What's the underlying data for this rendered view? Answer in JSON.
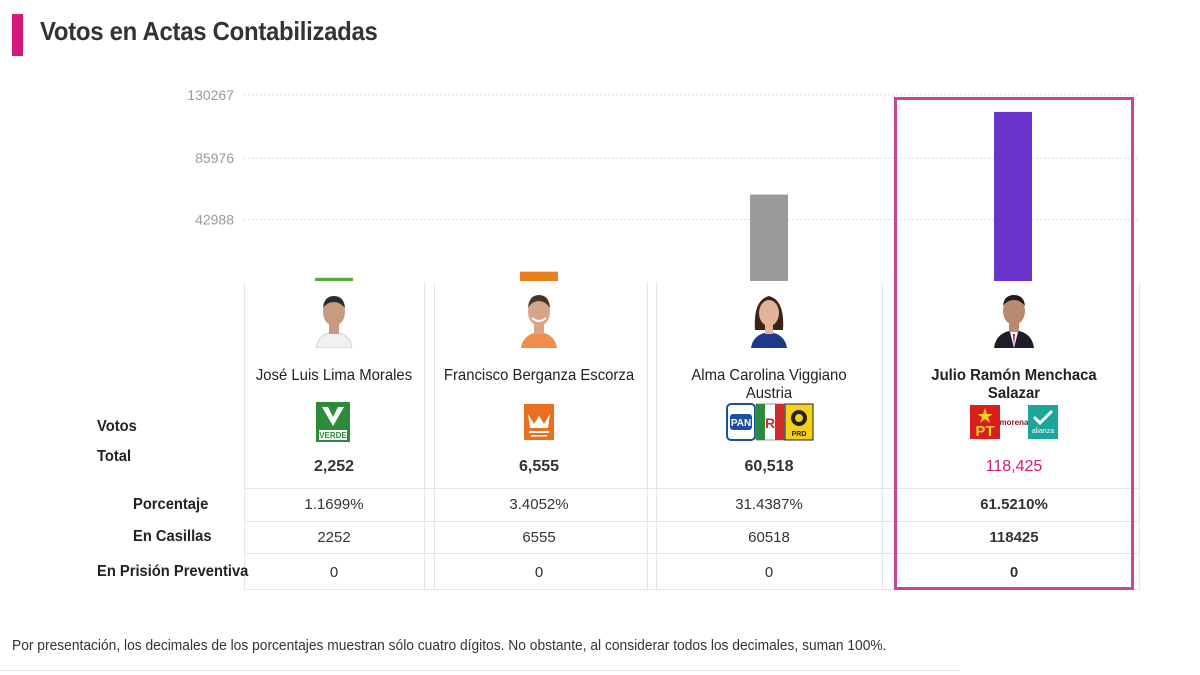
{
  "header": {
    "title": "Votos en Actas Contabilizadas"
  },
  "chart_data": {
    "type": "bar",
    "title": "Votos en Actas Contabilizadas",
    "categories": [
      "José Luis Lima Morales",
      "Francisco Berganza Escorza",
      "Alma Carolina Viggiano Austria",
      "Julio Ramón Menchaca Salazar"
    ],
    "values": [
      2252,
      6555,
      60518,
      118425
    ],
    "colors": [
      "#5aa83b",
      "#e8801f",
      "#9b9b9b",
      "#6a33cc"
    ],
    "yticks": [
      "42988",
      "85976",
      "130267"
    ],
    "ylim": [
      0,
      130267
    ],
    "grid": true
  },
  "candidates": [
    {
      "name": "José Luis Lima Morales",
      "party": "VERDE",
      "total": "2,252",
      "porcentaje": "1.1699%",
      "casillas": "2252",
      "prision": "0"
    },
    {
      "name": "Francisco Berganza Escorza",
      "party": "MOVIMIENTO CIUDADANO",
      "total": "6,555",
      "porcentaje": "3.4052%",
      "casillas": "6555",
      "prision": "0"
    },
    {
      "name": "Alma Carolina Viggiano Austria",
      "party": "PAN PRI PRD",
      "total": "60,518",
      "porcentaje": "31.4387%",
      "casillas": "60518",
      "prision": "0"
    },
    {
      "name": "Julio Ramón Menchaca Salazar",
      "party": "PT morena Nueva Alianza",
      "total": "118,425",
      "porcentaje": "61.5210%",
      "casillas": "118425",
      "prision": "0"
    }
  ],
  "logos": {
    "verde": "VERDE",
    "pan": "PAN",
    "prd": "PRD",
    "pt": "PT",
    "morena": "morena",
    "alianza": "alianza"
  },
  "row_labels": {
    "votos": "Votos",
    "total": "Total",
    "porcentaje": "Porcentaje",
    "casillas": "En Casillas",
    "prision": "En Prisión Preventiva"
  },
  "footnote": "Por presentación, los decimales de los porcentajes muestran sólo cuatro dígitos. No obstante, al considerar todos los decimales, suman 100%.",
  "accent_color": "#d5187b",
  "highlight_color": "#c7469a"
}
